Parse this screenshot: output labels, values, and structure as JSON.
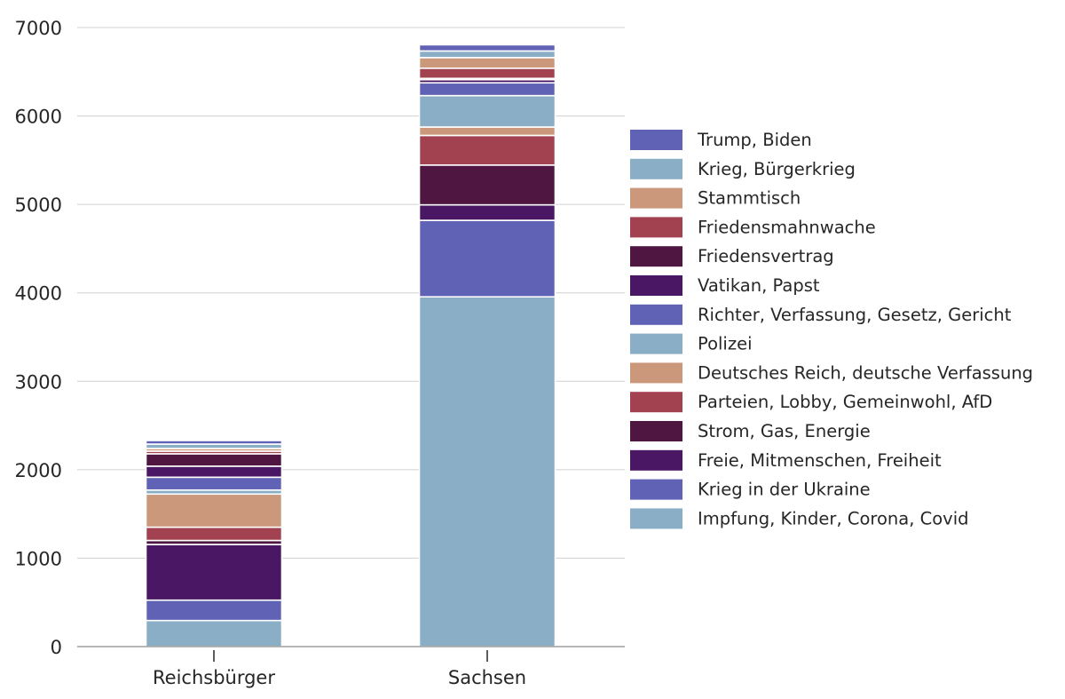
{
  "chart_data": {
    "type": "bar",
    "stacked": true,
    "title": "",
    "xlabel": "",
    "ylabel": "",
    "ylim": [
      0,
      7000
    ],
    "yticks": [
      0,
      1000,
      2000,
      3000,
      4000,
      5000,
      6000,
      7000
    ],
    "ytick_labels": [
      "0",
      "1000",
      "2000",
      "3000",
      "4000",
      "5000",
      "6000",
      "7000"
    ],
    "grid": "horizontal",
    "legend_position": "right",
    "categories": [
      "Reichsbürger",
      "Sachsen"
    ],
    "series": [
      {
        "name": "Impfung, Kinder, Corona, Covid",
        "color": "#8aaec6",
        "values": [
          295,
          3955
        ]
      },
      {
        "name": "Krieg in der Ukraine",
        "color": "#5f62b5",
        "values": [
          230,
          865
        ]
      },
      {
        "name": "Freie, Mitmenschen, Freiheit",
        "color": "#4a1764",
        "values": [
          630,
          175
        ]
      },
      {
        "name": "Strom, Gas, Energie",
        "color": "#4e1641",
        "values": [
          45,
          450
        ]
      },
      {
        "name": "Parteien, Lobby, Gemeinwohl, AfD",
        "color": "#a2414f",
        "values": [
          150,
          335
        ]
      },
      {
        "name": "Deutsches Reich, deutsche Verfassung",
        "color": "#cc987c",
        "values": [
          375,
          95
        ]
      },
      {
        "name": "Polizei",
        "color": "#8aaec6",
        "values": [
          45,
          355
        ]
      },
      {
        "name": "Richter, Verfassung, Gesetz, Gericht",
        "color": "#5f62b5",
        "values": [
          145,
          145
        ]
      },
      {
        "name": "Vatikan, Papst",
        "color": "#4a1764",
        "values": [
          125,
          35
        ]
      },
      {
        "name": "Friedensvertrag",
        "color": "#4e1641",
        "values": [
          140,
          15
        ]
      },
      {
        "name": "Friedensmahnwache",
        "color": "#a2414f",
        "values": [
          30,
          115
        ]
      },
      {
        "name": "Stammtisch",
        "color": "#cc987c",
        "values": [
          30,
          120
        ]
      },
      {
        "name": "Krieg, Bürgerkrieg",
        "color": "#8aaec6",
        "values": [
          50,
          75
        ]
      },
      {
        "name": "Trump, Biden",
        "color": "#5f62b5",
        "values": [
          40,
          70
        ]
      }
    ],
    "legend_order": [
      "Trump, Biden",
      "Krieg, Bürgerkrieg",
      "Stammtisch",
      "Friedensmahnwache",
      "Friedensvertrag",
      "Vatikan, Papst",
      "Richter, Verfassung, Gesetz, Gericht",
      "Polizei",
      "Deutsches Reich, deutsche Verfassung",
      "Parteien, Lobby, Gemeinwohl, AfD",
      "Strom, Gas, Energie",
      "Freie, Mitmenschen, Freiheit",
      "Krieg in der Ukraine",
      "Impfung, Kinder, Corona, Covid"
    ]
  }
}
